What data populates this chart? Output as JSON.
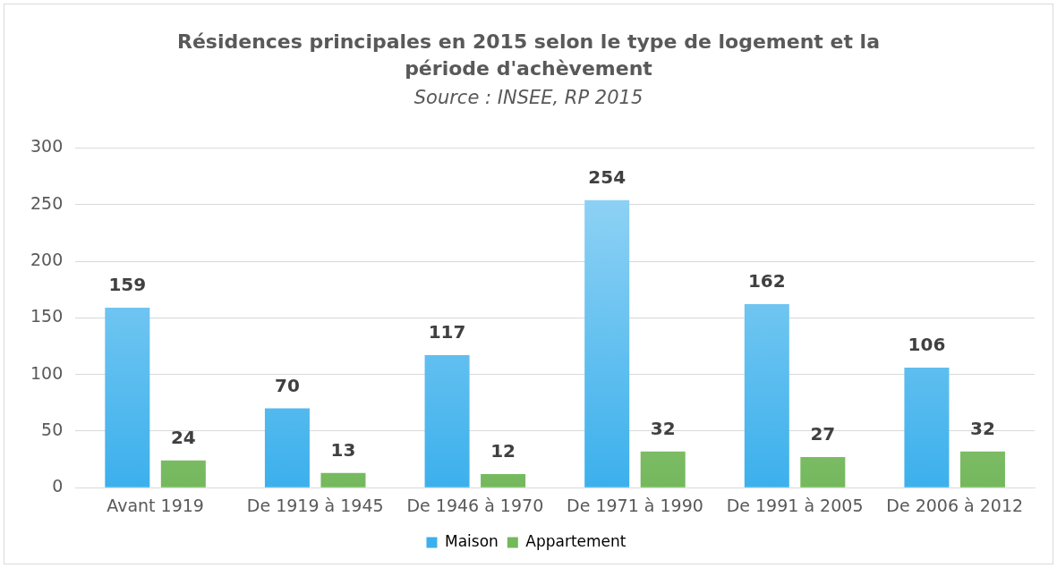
{
  "chart_data": {
    "type": "bar",
    "title": "Résidences principales en 2015 selon le type de logement et la période d'achèvement",
    "subtitle": "Source : INSEE, RP 2015",
    "categories": [
      "Avant 1919",
      "De 1919 à 1945",
      "De 1946 à 1970",
      "De 1971 à 1990",
      "De 1991 à 2005",
      "De 2006 à 2012"
    ],
    "series": [
      {
        "name": "Maison",
        "color": "#3cb0ec",
        "values": [
          159,
          70,
          117,
          254,
          162,
          106
        ]
      },
      {
        "name": "Appartement",
        "color": "#74b85c",
        "values": [
          24,
          13,
          12,
          32,
          27,
          32
        ]
      }
    ],
    "ylim": [
      0,
      300
    ],
    "yticks": [
      0,
      50,
      100,
      150,
      200,
      250,
      300
    ],
    "grid": "y",
    "legend": "bottom",
    "data_labels": true
  }
}
